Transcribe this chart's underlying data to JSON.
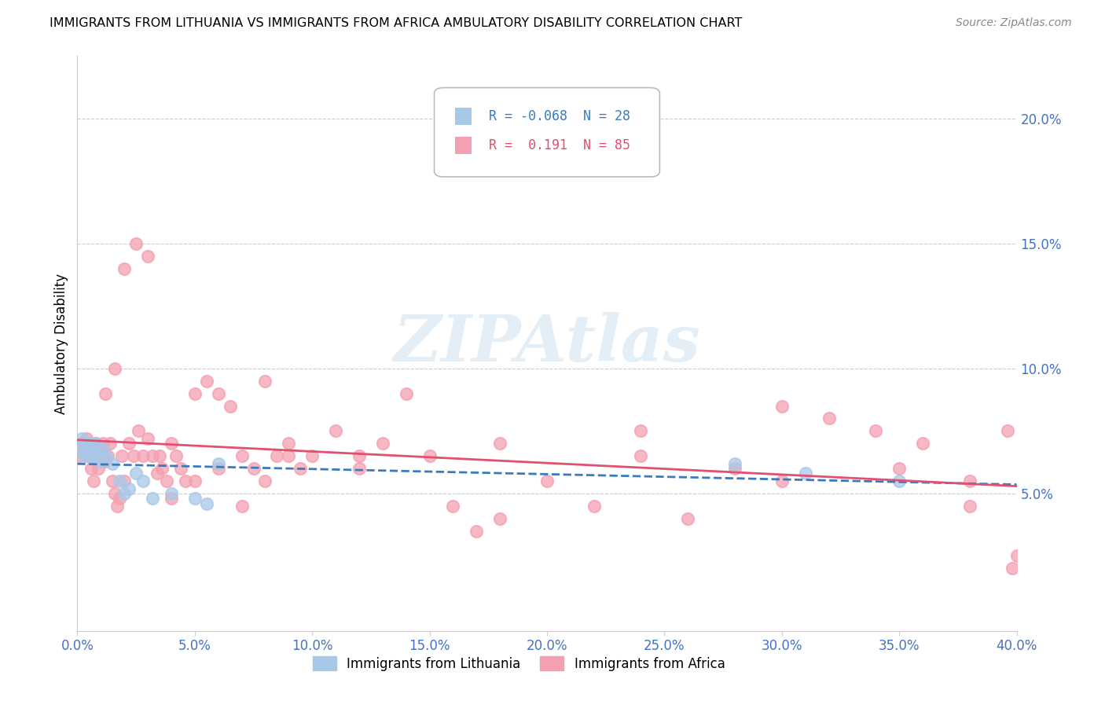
{
  "title": "IMMIGRANTS FROM LITHUANIA VS IMMIGRANTS FROM AFRICA AMBULATORY DISABILITY CORRELATION CHART",
  "source": "Source: ZipAtlas.com",
  "ylabel": "Ambulatory Disability",
  "legend1_label": "Immigrants from Lithuania",
  "legend2_label": "Immigrants from Africa",
  "R1": -0.068,
  "N1": 28,
  "R2": 0.191,
  "N2": 85,
  "color_blue": "#a8c8e8",
  "color_pink": "#f4a0b0",
  "color_blue_line": "#3a7abf",
  "color_pink_line": "#e05070",
  "xlim": [
    0.0,
    0.4
  ],
  "ylim": [
    -0.005,
    0.225
  ],
  "xticks": [
    0.0,
    0.05,
    0.1,
    0.15,
    0.2,
    0.25,
    0.3,
    0.35,
    0.4
  ],
  "yticks_right": [
    0.05,
    0.1,
    0.15,
    0.2
  ],
  "background_color": "#ffffff",
  "tick_color": "#4472c4",
  "lithuania_x": [
    0.001,
    0.002,
    0.003,
    0.003,
    0.004,
    0.005,
    0.005,
    0.006,
    0.007,
    0.008,
    0.009,
    0.01,
    0.011,
    0.012,
    0.015,
    0.018,
    0.02,
    0.022,
    0.025,
    0.028,
    0.032,
    0.04,
    0.05,
    0.055,
    0.06,
    0.28,
    0.31,
    0.35
  ],
  "lithuania_y": [
    0.068,
    0.072,
    0.065,
    0.07,
    0.068,
    0.065,
    0.07,
    0.065,
    0.068,
    0.07,
    0.065,
    0.063,
    0.068,
    0.065,
    0.062,
    0.055,
    0.05,
    0.052,
    0.058,
    0.055,
    0.048,
    0.05,
    0.048,
    0.046,
    0.062,
    0.062,
    0.058,
    0.055
  ],
  "africa_x": [
    0.001,
    0.002,
    0.003,
    0.004,
    0.005,
    0.006,
    0.007,
    0.008,
    0.009,
    0.01,
    0.011,
    0.012,
    0.013,
    0.014,
    0.015,
    0.016,
    0.017,
    0.018,
    0.019,
    0.02,
    0.022,
    0.024,
    0.026,
    0.028,
    0.03,
    0.032,
    0.034,
    0.036,
    0.038,
    0.04,
    0.042,
    0.044,
    0.046,
    0.05,
    0.055,
    0.06,
    0.065,
    0.07,
    0.075,
    0.08,
    0.085,
    0.09,
    0.095,
    0.1,
    0.11,
    0.12,
    0.13,
    0.14,
    0.15,
    0.16,
    0.17,
    0.18,
    0.2,
    0.22,
    0.24,
    0.26,
    0.28,
    0.3,
    0.32,
    0.34,
    0.36,
    0.38,
    0.4,
    0.004,
    0.008,
    0.012,
    0.016,
    0.02,
    0.025,
    0.03,
    0.035,
    0.04,
    0.05,
    0.06,
    0.07,
    0.08,
    0.09,
    0.12,
    0.18,
    0.24,
    0.3,
    0.35,
    0.38,
    0.396,
    0.398
  ],
  "africa_y": [
    0.065,
    0.07,
    0.068,
    0.072,
    0.065,
    0.06,
    0.055,
    0.065,
    0.06,
    0.068,
    0.07,
    0.063,
    0.065,
    0.07,
    0.055,
    0.05,
    0.045,
    0.048,
    0.065,
    0.055,
    0.07,
    0.065,
    0.075,
    0.065,
    0.072,
    0.065,
    0.058,
    0.06,
    0.055,
    0.07,
    0.065,
    0.06,
    0.055,
    0.09,
    0.095,
    0.09,
    0.085,
    0.065,
    0.06,
    0.095,
    0.065,
    0.07,
    0.06,
    0.065,
    0.075,
    0.065,
    0.07,
    0.09,
    0.065,
    0.045,
    0.035,
    0.04,
    0.055,
    0.045,
    0.065,
    0.04,
    0.06,
    0.055,
    0.08,
    0.075,
    0.07,
    0.045,
    0.025,
    0.065,
    0.07,
    0.09,
    0.1,
    0.14,
    0.15,
    0.145,
    0.065,
    0.048,
    0.055,
    0.06,
    0.045,
    0.055,
    0.065,
    0.06,
    0.07,
    0.075,
    0.085,
    0.06,
    0.055,
    0.075,
    0.02
  ],
  "watermark_text": "ZIPAtlas",
  "watermark_color": "#c8dff0",
  "watermark_alpha": 0.5
}
